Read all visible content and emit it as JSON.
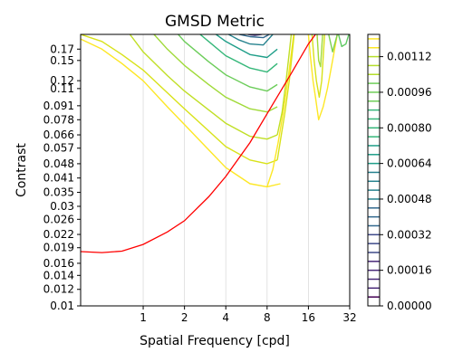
{
  "chart_data": {
    "type": "contour",
    "title": "GMSD Metric",
    "xlabel": "Spatial Frequency [cpd]",
    "ylabel": "Contrast",
    "x_scale": "log",
    "y_scale": "log",
    "xlim": [
      0.35,
      32
    ],
    "ylim": [
      0.01,
      0.2
    ],
    "x_ticks": [
      "1",
      "2",
      "4",
      "8",
      "16",
      "32"
    ],
    "x_tick_values": [
      1,
      2,
      4,
      8,
      16,
      32
    ],
    "y_ticks": [
      "0.01",
      "0.012",
      "0.014",
      "0.016",
      "0.019",
      "0.022",
      "0.026",
      "0.03",
      "0.035",
      "0.041",
      "0.048",
      "0.057",
      "0.066",
      "0.078",
      "0.091",
      "0.11",
      "0.12",
      "0.15",
      "0.17"
    ],
    "y_tick_values": [
      0.01,
      0.012,
      0.014,
      0.016,
      0.019,
      0.022,
      0.026,
      0.03,
      0.035,
      0.041,
      0.048,
      0.057,
      0.066,
      0.078,
      0.091,
      0.11,
      0.12,
      0.15,
      0.17
    ],
    "x_grid": true,
    "colorbar": {
      "colormap": "viridis",
      "range": [
        0.0,
        0.00122
      ],
      "tick_labels": [
        "0.00000",
        "0.00016",
        "0.00032",
        "0.00048",
        "0.00064",
        "0.00080",
        "0.00096",
        "0.00112"
      ],
      "tick_values": [
        0.0,
        0.00016,
        0.00032,
        0.00048,
        0.00064,
        0.0008,
        0.00096,
        0.00112
      ],
      "level_step": 4e-05
    },
    "threshold_curve": {
      "color": "#ff0000",
      "x": [
        0.35,
        0.5,
        0.7,
        1,
        1.5,
        2,
        3,
        4,
        6,
        8,
        12,
        16,
        18
      ],
      "y": [
        0.0182,
        0.018,
        0.0183,
        0.0197,
        0.0226,
        0.0256,
        0.0333,
        0.0417,
        0.0606,
        0.0833,
        0.13,
        0.18,
        0.2
      ]
    },
    "contours": [
      {
        "level": 4e-05,
        "color": "#fde725",
        "x": [
          0.35,
          0.5,
          0.7,
          1,
          1.5,
          2,
          3,
          4,
          6,
          8,
          10
        ],
        "y": [
          0.19,
          0.17,
          0.145,
          0.12,
          0.09,
          0.074,
          0.056,
          0.046,
          0.0385,
          0.0372,
          0.0385
        ]
      },
      {
        "level": 8e-05,
        "color": "#d8e219",
        "x": [
          0.35,
          0.5,
          0.7,
          1,
          1.5,
          2,
          3,
          4,
          6,
          8,
          9.5
        ],
        "y": [
          0.2,
          0.185,
          0.16,
          0.135,
          0.105,
          0.088,
          0.069,
          0.058,
          0.05,
          0.048,
          0.05
        ]
      },
      {
        "level": 0.00012,
        "color": "#c0df25",
        "x": [
          0.8,
          1,
          1.5,
          2,
          3,
          4,
          6,
          8,
          9.5
        ],
        "y": [
          0.2,
          0.165,
          0.127,
          0.107,
          0.087,
          0.075,
          0.065,
          0.063,
          0.066
        ]
      },
      {
        "level": 0.0002,
        "color": "#a0da39",
        "x": [
          1.2,
          1.5,
          2,
          3,
          4,
          6,
          8,
          9.5
        ],
        "y": [
          0.2,
          0.17,
          0.142,
          0.115,
          0.1,
          0.088,
          0.085,
          0.09
        ]
      },
      {
        "level": 0.00032,
        "color": "#6ccd5a",
        "x": [
          1.8,
          2,
          3,
          4,
          6,
          8,
          9.5
        ],
        "y": [
          0.2,
          0.185,
          0.148,
          0.128,
          0.112,
          0.107,
          0.115
        ]
      },
      {
        "level": 0.00048,
        "color": "#35b779",
        "x": [
          2.6,
          3,
          4,
          6,
          8,
          9.5
        ],
        "y": [
          0.2,
          0.185,
          0.158,
          0.138,
          0.132,
          0.145
        ]
      },
      {
        "level": 0.00064,
        "color": "#1f9e89",
        "x": [
          3.4,
          4,
          6,
          8,
          9.5
        ],
        "y": [
          0.2,
          0.185,
          0.16,
          0.155,
          0.17
        ]
      },
      {
        "level": 0.0008,
        "color": "#26828e",
        "x": [
          4.2,
          5,
          6,
          7.5,
          8.8
        ],
        "y": [
          0.2,
          0.188,
          0.18,
          0.178,
          0.2
        ]
      },
      {
        "level": 0.00096,
        "color": "#31688e",
        "x": [
          5,
          6,
          7.5,
          8.3
        ],
        "y": [
          0.2,
          0.195,
          0.193,
          0.2
        ]
      },
      {
        "level": 0.00112,
        "color": "#443983",
        "x": [
          5.8,
          6.5,
          7.3
        ],
        "y": [
          0.2,
          0.198,
          0.2
        ]
      }
    ],
    "right_contours": [
      {
        "level": 4e-05,
        "color": "#fde725",
        "x": [
          8,
          8.8,
          9.6,
          10.5,
          11.5,
          12.5
        ],
        "y": [
          0.0372,
          0.045,
          0.06,
          0.085,
          0.13,
          0.2
        ]
      },
      {
        "level": 8e-05,
        "color": "#d8e219",
        "x": [
          9.5,
          10,
          10.8,
          11.6,
          12.6
        ],
        "y": [
          0.05,
          0.062,
          0.085,
          0.12,
          0.2
        ]
      },
      {
        "level": 0.00012,
        "color": "#c0df25",
        "x": [
          9.5,
          10.3,
          11,
          12
        ],
        "y": [
          0.066,
          0.085,
          0.12,
          0.2
        ]
      },
      {
        "level": 4e-05,
        "color": "#fde725",
        "x": [
          16,
          16.5,
          17.3,
          18,
          19,
          20.5,
          22,
          24,
          26
        ],
        "y": [
          0.2,
          0.16,
          0.12,
          0.1,
          0.078,
          0.09,
          0.11,
          0.15,
          0.2
        ]
      },
      {
        "level": 8e-05,
        "color": "#d8e219",
        "x": [
          17,
          17.6,
          18.3,
          19.2,
          20,
          21
        ],
        "y": [
          0.2,
          0.15,
          0.12,
          0.1,
          0.12,
          0.2
        ]
      },
      {
        "level": 0.00016,
        "color": "#a0da39",
        "x": [
          18.5,
          19,
          19.6,
          20.3
        ],
        "y": [
          0.2,
          0.15,
          0.14,
          0.2
        ]
      },
      {
        "level": 0.00024,
        "color": "#7ad151",
        "x": [
          22.5,
          24,
          26
        ],
        "y": [
          0.2,
          0.165,
          0.2
        ]
      },
      {
        "level": 0.00032,
        "color": "#5ec962",
        "x": [
          26.5,
          28,
          30,
          31.5
        ],
        "y": [
          0.2,
          0.175,
          0.18,
          0.2
        ]
      }
    ]
  }
}
